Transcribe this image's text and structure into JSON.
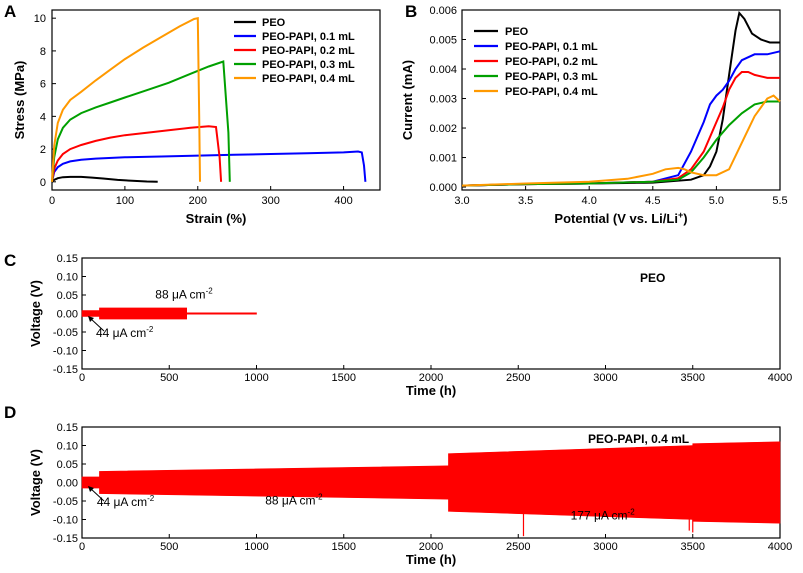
{
  "chart_data": [
    {
      "panel": "A",
      "type": "line",
      "xlabel": "Strain (%)",
      "ylabel": "Stress (MPa)",
      "xlim": [
        0,
        450
      ],
      "ylim": [
        -0.5,
        10.5
      ],
      "xticks": [
        0,
        100,
        200,
        300,
        400
      ],
      "yticks": [
        0,
        2,
        4,
        6,
        8,
        10
      ],
      "legend_position": "top-right",
      "series": [
        {
          "name": "PEO",
          "color": "#000000",
          "x": [
            0,
            3,
            8,
            15,
            25,
            40,
            55,
            70,
            90,
            110,
            130,
            145
          ],
          "y": [
            0,
            0.12,
            0.22,
            0.28,
            0.3,
            0.3,
            0.26,
            0.2,
            0.12,
            0.06,
            0.02,
            0.01
          ]
        },
        {
          "name": "PEO-PAPI, 0.1 mL",
          "color": "#0000ff",
          "x": [
            0,
            3,
            8,
            15,
            25,
            40,
            60,
            100,
            150,
            200,
            250,
            300,
            350,
            400,
            420,
            425,
            428,
            430
          ],
          "y": [
            0,
            0.6,
            0.9,
            1.1,
            1.25,
            1.35,
            1.42,
            1.5,
            1.55,
            1.6,
            1.65,
            1.7,
            1.75,
            1.8,
            1.85,
            1.8,
            1.0,
            0
          ]
        },
        {
          "name": "PEO-PAPI, 0.2 mL",
          "color": "#ff0000",
          "x": [
            0,
            3,
            8,
            15,
            25,
            40,
            60,
            80,
            100,
            130,
            160,
            190,
            215,
            225,
            230,
            232
          ],
          "y": [
            0,
            0.8,
            1.3,
            1.7,
            2.0,
            2.25,
            2.5,
            2.7,
            2.85,
            3.0,
            3.15,
            3.3,
            3.4,
            3.35,
            1.5,
            0
          ]
        },
        {
          "name": "PEO-PAPI, 0.3 mL",
          "color": "#00a000",
          "x": [
            0,
            3,
            8,
            15,
            25,
            40,
            60,
            80,
            100,
            130,
            160,
            190,
            215,
            235,
            242,
            244
          ],
          "y": [
            0,
            1.5,
            2.6,
            3.3,
            3.8,
            4.2,
            4.55,
            4.85,
            5.15,
            5.6,
            6.05,
            6.6,
            7.05,
            7.35,
            3.0,
            0
          ]
        },
        {
          "name": "PEO-PAPI, 0.4 mL",
          "color": "#ff9900",
          "x": [
            0,
            3,
            8,
            15,
            25,
            40,
            60,
            80,
            100,
            125,
            150,
            175,
            195,
            200,
            202,
            203
          ],
          "y": [
            0,
            2.2,
            3.6,
            4.4,
            5.0,
            5.5,
            6.2,
            6.85,
            7.5,
            8.2,
            8.85,
            9.5,
            9.95,
            10.0,
            4.0,
            0
          ]
        }
      ]
    },
    {
      "panel": "B",
      "type": "line",
      "xlabel": "Potential (V vs. Li/Li",
      "xlabel_sup": "+",
      "xlabel_end": ")",
      "ylabel": "Current (mA)",
      "xlim": [
        3.0,
        5.5
      ],
      "ylim": [
        -0.0001,
        0.006
      ],
      "xticks": [
        "3.0",
        "3.5",
        "4.0",
        "4.5",
        "5.0",
        "5.5"
      ],
      "yticks": [
        "0.000",
        "0.001",
        "0.002",
        "0.003",
        "0.004",
        "0.005",
        "0.006"
      ],
      "legend_position": "top-left",
      "series": [
        {
          "name": "PEO",
          "color": "#000000",
          "x": [
            3.0,
            3.5,
            4.0,
            4.5,
            4.8,
            4.9,
            4.95,
            5.0,
            5.05,
            5.1,
            5.15,
            5.18,
            5.22,
            5.28,
            5.35,
            5.42,
            5.5
          ],
          "y": [
            5e-05,
            0.0001,
            0.00012,
            0.00015,
            0.00025,
            0.0004,
            0.0007,
            0.0012,
            0.0023,
            0.0038,
            0.0053,
            0.0059,
            0.0057,
            0.0052,
            0.005,
            0.0049,
            0.0049
          ]
        },
        {
          "name": "PEO-PAPI, 0.1 mL",
          "color": "#0000ff",
          "x": [
            3.0,
            3.5,
            4.0,
            4.5,
            4.7,
            4.8,
            4.9,
            4.95,
            5.0,
            5.05,
            5.1,
            5.15,
            5.2,
            5.3,
            5.4,
            5.5
          ],
          "y": [
            5e-05,
            0.0001,
            0.00012,
            0.00018,
            0.0004,
            0.0012,
            0.0022,
            0.0028,
            0.0031,
            0.0033,
            0.0036,
            0.004,
            0.0043,
            0.0045,
            0.0045,
            0.0046
          ]
        },
        {
          "name": "PEO-PAPI, 0.2 mL",
          "color": "#ff0000",
          "x": [
            3.0,
            3.5,
            4.0,
            4.5,
            4.7,
            4.8,
            4.9,
            5.0,
            5.05,
            5.1,
            5.15,
            5.2,
            5.25,
            5.3,
            5.4,
            5.5
          ],
          "y": [
            5e-05,
            0.0001,
            0.00012,
            0.00018,
            0.0003,
            0.0006,
            0.0012,
            0.0022,
            0.0027,
            0.0033,
            0.0037,
            0.0039,
            0.0039,
            0.0038,
            0.0037,
            0.0037
          ]
        },
        {
          "name": "PEO-PAPI, 0.3 mL",
          "color": "#00a000",
          "x": [
            3.0,
            3.5,
            4.0,
            4.5,
            4.7,
            4.8,
            4.9,
            5.0,
            5.1,
            5.2,
            5.3,
            5.4,
            5.5
          ],
          "y": [
            5e-05,
            0.0001,
            0.00012,
            0.00018,
            0.00025,
            0.0005,
            0.001,
            0.0016,
            0.0021,
            0.0025,
            0.0028,
            0.0029,
            0.0029
          ]
        },
        {
          "name": "PEO-PAPI, 0.4 mL",
          "color": "#ff9900",
          "x": [
            3.0,
            3.5,
            4.0,
            4.3,
            4.5,
            4.6,
            4.7,
            4.75,
            4.8,
            4.9,
            5.0,
            5.1,
            5.2,
            5.3,
            5.4,
            5.45,
            5.5
          ],
          "y": [
            5e-05,
            0.00012,
            0.00018,
            0.00028,
            0.00045,
            0.0006,
            0.00065,
            0.0006,
            0.0005,
            0.0004,
            0.0004,
            0.0006,
            0.0015,
            0.0024,
            0.003,
            0.0031,
            0.0029
          ]
        }
      ]
    },
    {
      "panel": "C",
      "type": "area",
      "title": "PEO",
      "xlabel": "Time (h)",
      "ylabel": "Voltage (V)",
      "xlim": [
        0,
        4000
      ],
      "ylim": [
        -0.15,
        0.15
      ],
      "xticks": [
        0,
        500,
        1000,
        1500,
        2000,
        2500,
        3000,
        3500,
        4000
      ],
      "yticks": [
        "0.15",
        "0.10",
        "0.05",
        "0.00",
        "-0.05",
        "-0.10",
        "-0.15"
      ],
      "color": "#ff0000",
      "segments": [
        {
          "t_start": 0,
          "t_end": 100,
          "amplitude": 0.008
        },
        {
          "t_start": 100,
          "t_end": 600,
          "amplitude": 0.015
        },
        {
          "t_start": 600,
          "t_end": 1000,
          "amplitude": 0.002
        }
      ],
      "annotations": [
        {
          "text": "88 μA cm",
          "sup": "-2",
          "x": 420,
          "y": 0.04
        },
        {
          "text": "44 μA cm",
          "sup": "-2",
          "x": 80,
          "y": -0.063
        }
      ]
    },
    {
      "panel": "D",
      "type": "area",
      "title": "PEO-PAPI, 0.4 mL",
      "xlabel": "Time (h)",
      "ylabel": "Voltage (V)",
      "xlim": [
        0,
        4000
      ],
      "ylim": [
        -0.15,
        0.15
      ],
      "xticks": [
        0,
        500,
        1000,
        1500,
        2000,
        2500,
        3000,
        3500,
        4000
      ],
      "yticks": [
        "0.15",
        "0.10",
        "0.05",
        "0.00",
        "-0.05",
        "-0.10",
        "-0.15"
      ],
      "color": "#ff0000",
      "segments": [
        {
          "t_start": 0,
          "t_end": 100,
          "amplitude_start": 0.015,
          "amplitude_end": 0.015
        },
        {
          "t_start": 100,
          "t_end": 2100,
          "amplitude_start": 0.03,
          "amplitude_end": 0.045
        },
        {
          "t_start": 2100,
          "t_end": 3500,
          "amplitude_start": 0.078,
          "amplitude_end": 0.1
        },
        {
          "t_start": 3500,
          "t_end": 4000,
          "amplitude_start": 0.105,
          "amplitude_end": 0.11
        }
      ],
      "spikes": [
        {
          "t": 2530,
          "low": -0.145
        },
        {
          "t": 3480,
          "low": -0.13
        },
        {
          "t": 3500,
          "low": -0.135
        }
      ],
      "annotations": [
        {
          "text": "44 μA cm",
          "sup": "-2",
          "x": 85,
          "y": -0.063
        },
        {
          "text": "88 μA cm",
          "sup": "-2",
          "x": 1050,
          "y": -0.06
        },
        {
          "text": "177 μA cm",
          "sup": "-2",
          "x": 2800,
          "y": -0.1
        }
      ]
    }
  ],
  "panel_letters": {
    "a": "A",
    "b": "B",
    "c": "C",
    "d": "D"
  }
}
